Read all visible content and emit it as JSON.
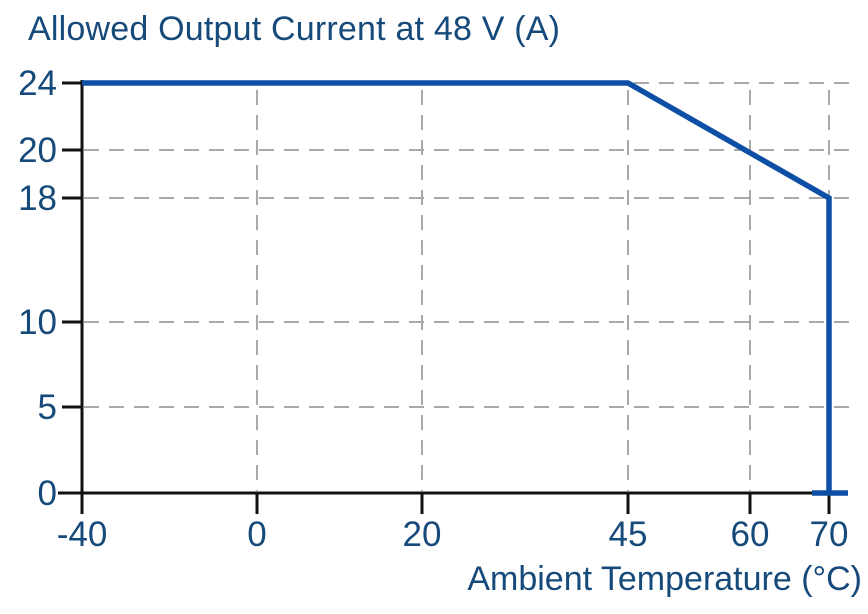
{
  "chart_data": {
    "type": "line",
    "title": "Allowed Output Current at 48 V (A)",
    "xlabel": "Ambient Temperature (°C)",
    "ylabel": "",
    "x_ticks": [
      -40,
      0,
      20,
      45,
      60,
      70
    ],
    "x_tick_labels": [
      "-40",
      "0",
      "20",
      "45",
      "60",
      "70"
    ],
    "y_ticks": [
      0,
      5,
      10,
      18,
      20,
      24
    ],
    "y_tick_labels": [
      "0",
      "5",
      "10",
      "18",
      "20",
      "24"
    ],
    "xlim": [
      -40,
      70
    ],
    "ylim": [
      0,
      24
    ],
    "grid": "dashed",
    "legend": "none",
    "series": [
      {
        "points": [
          [
            -40,
            24
          ],
          [
            45,
            24
          ],
          [
            70,
            18
          ],
          [
            70,
            0
          ]
        ],
        "color": "#0d4fa5"
      }
    ]
  },
  "colors": {
    "text": "#164a7a",
    "curve": "#0d4fa5",
    "grid": "#a9a9a9",
    "axis": "#111111",
    "background": "#ffffff"
  }
}
